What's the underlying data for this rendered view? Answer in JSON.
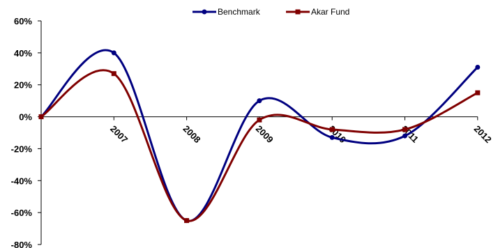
{
  "chart_data": {
    "type": "line",
    "categories": [
      "",
      "2007",
      "2008",
      "2009",
      "2010",
      "2011",
      "2012"
    ],
    "ylim": [
      -80,
      60
    ],
    "yticks": [
      -80,
      -60,
      -40,
      -20,
      0,
      20,
      40,
      60
    ],
    "ytick_labels": [
      "-80%",
      "-60%",
      "-40%",
      "-20%",
      "0%",
      "20%",
      "40%",
      "60%"
    ],
    "grid": false,
    "legend": "top",
    "series": [
      {
        "name": "Benchmark",
        "values": [
          0,
          40,
          -65,
          10,
          -13,
          -12,
          31
        ],
        "color": "#000080",
        "marker": "circle"
      },
      {
        "name": "Akar Fund",
        "values": [
          0,
          27,
          -65,
          -2,
          -8,
          -8,
          15
        ],
        "color": "#800000",
        "marker": "square"
      }
    ]
  }
}
